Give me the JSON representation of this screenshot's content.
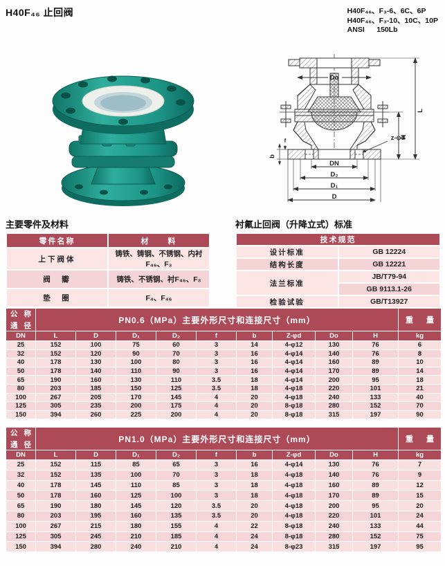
{
  "page": {
    "title": "H40F₄₆ 止回阀",
    "codes": "H40F₄₆、F₃-6、6C、6P\nH40F₄₆、F₃-10、10C、10P\nANSI      150Lb"
  },
  "materials": {
    "title": "主要零件及材料",
    "headers": [
      "零件名称",
      "材　　料"
    ],
    "rows": [
      [
        "上下阀体",
        "铸铁、铸钢、不锈钢、内衬F₄₆、F₃"
      ],
      [
        "阀　瓣",
        "铸铁、不锈钢、衬F₄₆、F₃"
      ],
      [
        "垫　圈",
        "F₄、F₄₆"
      ]
    ]
  },
  "standards": {
    "title": "衬氟止回阀（升降立式）标准",
    "header": "技术规范",
    "design_label": "设计标准",
    "design_value": "GB 12224",
    "length_label": "结构长度",
    "length_value": "GB 12221",
    "flange_label": "法兰标准",
    "flange_value1": "JB/T79-94",
    "flange_value2": "GB 9113.1-26",
    "test_label": "检验试验",
    "test_value": "GB/T13927"
  },
  "dim_headers": [
    "DN",
    "L",
    "D",
    "D₁",
    "D₂",
    "f",
    "b",
    "Z-φd",
    "Do",
    "H",
    "kg"
  ],
  "corner": {
    "tl": "公",
    "tr": "称",
    "bl": "通",
    "br": "径"
  },
  "weight": {
    "l": "重",
    "r": "量"
  },
  "table_pn06": {
    "title": "PN0.6（MPa）主要外形尺寸和连接尺寸（mm）",
    "rows": [
      [
        "25",
        "152",
        "100",
        "75",
        "60",
        "3",
        "14",
        "4-φ12",
        "130",
        "76",
        "6"
      ],
      [
        "32",
        "152",
        "120",
        "90",
        "70",
        "3",
        "16",
        "4-φ14",
        "140",
        "76",
        "8"
      ],
      [
        "40",
        "178",
        "130",
        "100",
        "80",
        "3",
        "16",
        "4-φ14",
        "160",
        "89",
        "10"
      ],
      [
        "50",
        "178",
        "140",
        "110",
        "90",
        "3",
        "16",
        "4-φ14",
        "170",
        "89",
        "14"
      ],
      [
        "65",
        "190",
        "160",
        "130",
        "110",
        "3.5",
        "18",
        "4-φ14",
        "200",
        "95",
        "18"
      ],
      [
        "80",
        "203",
        "185",
        "150",
        "125",
        "3.5",
        "18",
        "4-φ18",
        "220",
        "101",
        "21"
      ],
      [
        "100",
        "267",
        "205",
        "170",
        "145",
        "4",
        "20",
        "4-φ18",
        "240",
        "133",
        "40"
      ],
      [
        "125",
        "305",
        "235",
        "200",
        "175",
        "4",
        "20",
        "8-φ18",
        "280",
        "152",
        "70"
      ],
      [
        "150",
        "394",
        "260",
        "225",
        "200",
        "4",
        "20",
        "8-φ18",
        "315",
        "197",
        "90"
      ]
    ]
  },
  "table_pn10": {
    "title": "PN1.0（MPa）主要外形尺寸和连接尺寸（mm）",
    "rows": [
      [
        "25",
        "152",
        "115",
        "85",
        "65",
        "3",
        "16",
        "4-φ14",
        "130",
        "76",
        "7"
      ],
      [
        "32",
        "152",
        "135",
        "100",
        "70",
        "3",
        "18",
        "4-φ18",
        "140",
        "76",
        "9"
      ],
      [
        "40",
        "178",
        "145",
        "110",
        "85",
        "3",
        "18",
        "4-φ18",
        "160",
        "89",
        "12"
      ],
      [
        "50",
        "178",
        "160",
        "125",
        "100",
        "3",
        "18",
        "4-φ18",
        "170",
        "89",
        "15"
      ],
      [
        "65",
        "190",
        "180",
        "145",
        "120",
        "3.5",
        "20",
        "4-φ18",
        "200",
        "95",
        "20"
      ],
      [
        "80",
        "203",
        "195",
        "160",
        "135",
        "3.5",
        "20",
        "4-φ18",
        "220",
        "101",
        "24"
      ],
      [
        "100",
        "267",
        "215",
        "180",
        "155",
        "4",
        "22",
        "8-φ18",
        "240",
        "133",
        "44"
      ],
      [
        "125",
        "305",
        "245",
        "210",
        "185",
        "4",
        "24",
        "8-φ18",
        "280",
        "152",
        "75"
      ],
      [
        "150",
        "394",
        "280",
        "240",
        "210",
        "4",
        "24",
        "8-φ23",
        "315",
        "197",
        "95"
      ]
    ]
  },
  "diagram": {
    "label_do": "Do",
    "label_l": "L",
    "label_h": "H",
    "label_zd": "z-φd",
    "label_dn": "DN",
    "label_d2": "D₂",
    "label_d1": "D₁",
    "label_d": "D",
    "label_b": "b",
    "label_f": "f"
  },
  "colors": {
    "header_red": "#ad4a57",
    "row_pink": "#f9e0e0",
    "row_pink_alt": "#f5d5d8",
    "valve_teal": "#1f9c8c"
  }
}
